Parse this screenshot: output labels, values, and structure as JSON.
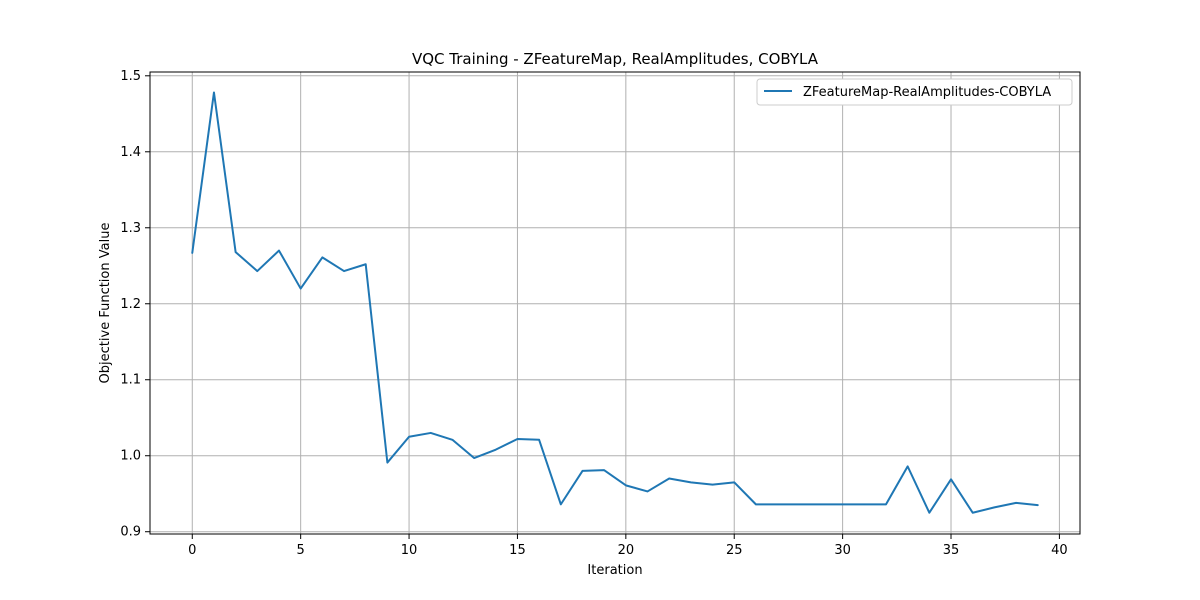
{
  "chart_data": {
    "type": "line",
    "title": "VQC Training - ZFeatureMap, RealAmplitudes, COBYLA",
    "xlabel": "Iteration",
    "ylabel": "Objective Function Value",
    "xlim": [
      -1.95,
      40.95
    ],
    "ylim": [
      0.897,
      1.505
    ],
    "xticks": [
      0,
      5,
      10,
      15,
      20,
      25,
      30,
      35,
      40
    ],
    "yticks": [
      0.9,
      1.0,
      1.1,
      1.2,
      1.3,
      1.4,
      1.5
    ],
    "xtick_labels": [
      "0",
      "5",
      "10",
      "15",
      "20",
      "25",
      "30",
      "35",
      "40"
    ],
    "ytick_labels": [
      "0.9",
      "1.0",
      "1.1",
      "1.2",
      "1.3",
      "1.4",
      "1.5"
    ],
    "grid": true,
    "legend_position": "top-right",
    "series": [
      {
        "name": "ZFeatureMap-RealAmplitudes-COBYLA",
        "color": "#1f77b4",
        "x": [
          0,
          1,
          2,
          3,
          4,
          5,
          6,
          7,
          8,
          9,
          10,
          11,
          12,
          13,
          14,
          15,
          16,
          17,
          18,
          19,
          20,
          21,
          22,
          23,
          24,
          25,
          26,
          27,
          28,
          29,
          30,
          31,
          32,
          33,
          34,
          35,
          36,
          37,
          38,
          39
        ],
        "values": [
          1.267,
          1.478,
          1.268,
          1.243,
          1.27,
          1.22,
          1.261,
          1.243,
          1.252,
          0.991,
          1.025,
          1.03,
          1.021,
          0.997,
          1.008,
          1.022,
          1.021,
          0.936,
          0.98,
          0.981,
          0.961,
          0.953,
          0.97,
          0.965,
          0.962,
          0.965,
          0.936,
          0.936,
          0.936,
          0.936,
          0.936,
          0.936,
          0.936,
          0.986,
          0.925,
          0.969,
          0.925,
          0.932,
          0.938,
          0.935
        ]
      }
    ]
  }
}
